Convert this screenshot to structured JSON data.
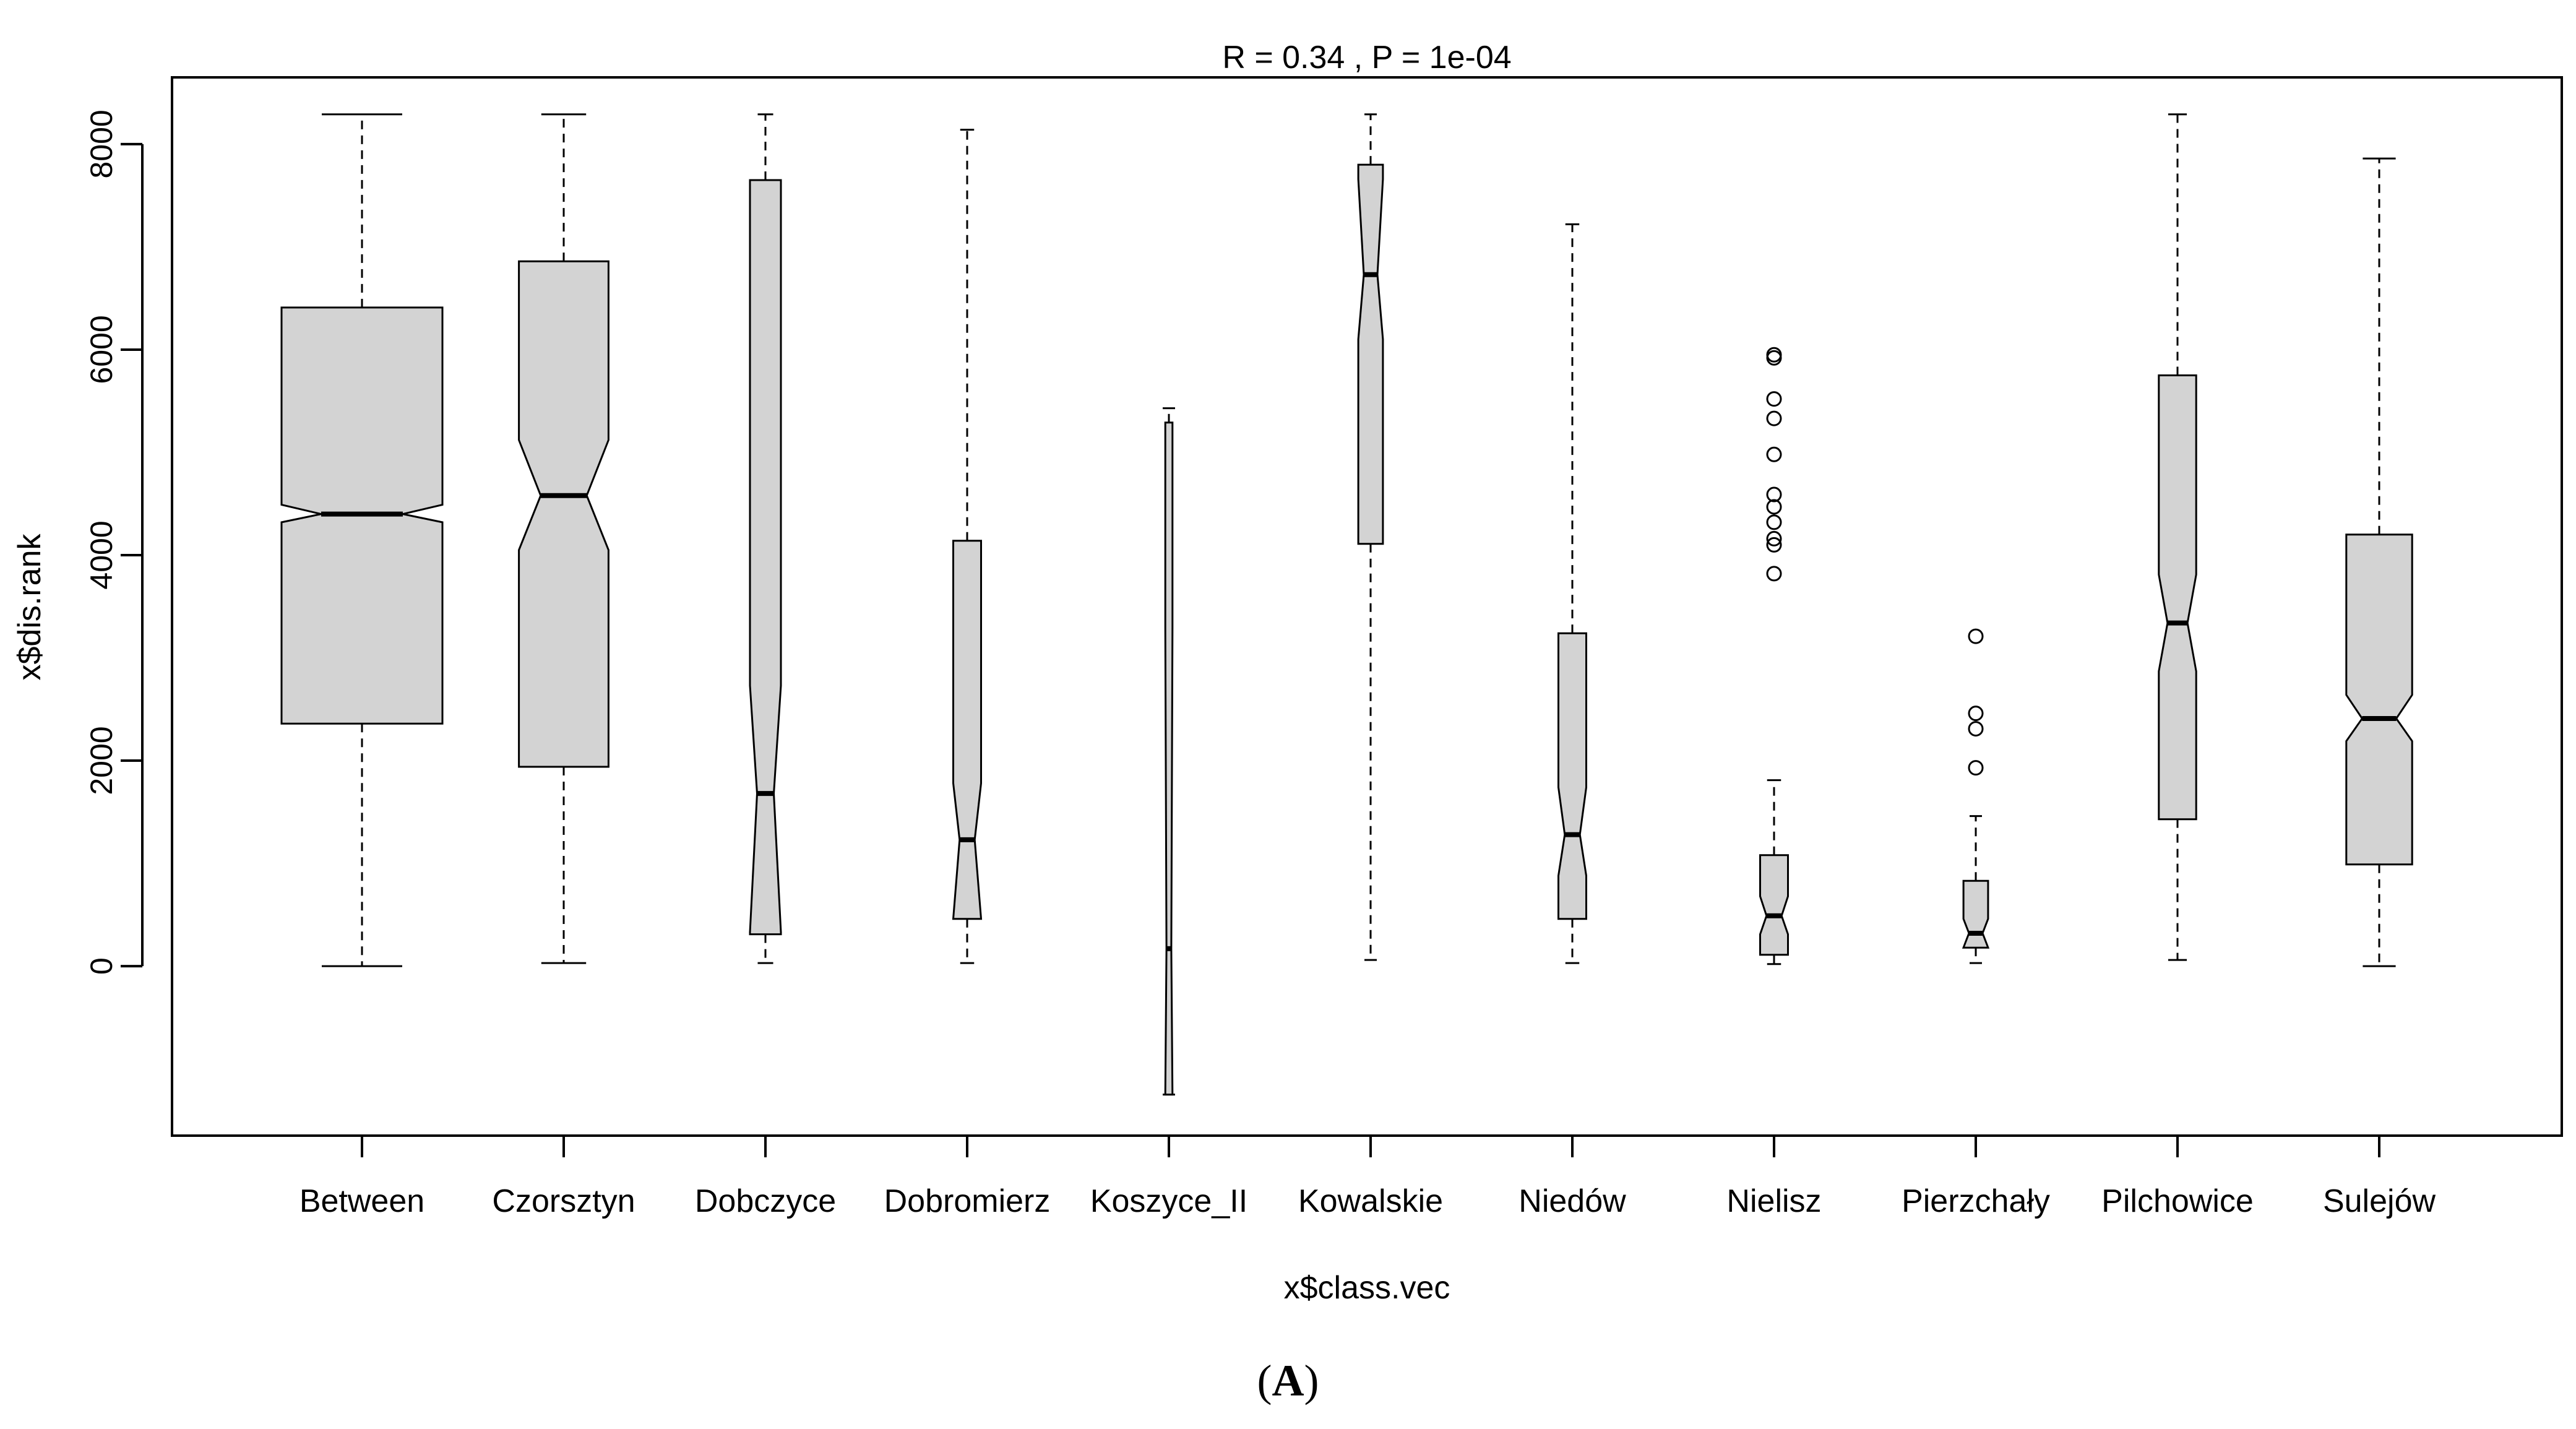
{
  "chart_data": {
    "type": "boxplot",
    "title": "R =  0.34 ,  P =  1e-04",
    "xlabel": "x$class.vec",
    "ylabel": "x$dis.rank",
    "ylim": [
      -1650,
      8650
    ],
    "yticks": [
      0,
      2000,
      4000,
      6000,
      8000
    ],
    "notched": true,
    "grid": false,
    "legend": "none",
    "box_fill": "#d3d3d3",
    "categories": [
      "Between",
      "Czorsztyn",
      "Dobczyce",
      "Dobromierz",
      "Koszyce_II",
      "Kowalskie",
      "Niedów",
      "Nielisz",
      "Pierzchały",
      "Pilchowice",
      "Sulejów"
    ],
    "boxes": [
      {
        "name": "Between",
        "whisker_low": 0,
        "q1": 2360,
        "median": 4400,
        "q3": 6410,
        "whisker_high": 8290,
        "notch_low": 4320,
        "notch_high": 4490,
        "outliers": []
      },
      {
        "name": "Czorsztyn",
        "whisker_low": 30,
        "q1": 1940,
        "median": 4580,
        "q3": 6860,
        "whisker_high": 8290,
        "notch_low": 4050,
        "notch_high": 5120,
        "outliers": []
      },
      {
        "name": "Dobczyce",
        "whisker_low": 30,
        "q1": 310,
        "median": 1680,
        "q3": 7650,
        "whisker_high": 8290,
        "notch_low": 330,
        "notch_high": 2730,
        "outliers": []
      },
      {
        "name": "Dobromierz",
        "whisker_low": 30,
        "q1": 460,
        "median": 1230,
        "q3": 4140,
        "whisker_high": 8140,
        "notch_low": 420,
        "notch_high": 1780,
        "outliers": []
      },
      {
        "name": "Koszyce_II",
        "whisker_low": -1250,
        "q1": -1250,
        "median": 170,
        "q3": 5290,
        "whisker_high": 5430,
        "notch_low": -1250,
        "notch_high": 3300,
        "outliers": []
      },
      {
        "name": "Kowalskie",
        "whisker_low": 60,
        "q1": 4110,
        "median": 6730,
        "q3": 7800,
        "whisker_high": 8290,
        "notch_low": 6100,
        "notch_high": 7660,
        "outliers": []
      },
      {
        "name": "Niedów",
        "whisker_low": 30,
        "q1": 460,
        "median": 1280,
        "q3": 3240,
        "whisker_high": 7220,
        "notch_low": 880,
        "notch_high": 1740,
        "outliers": []
      },
      {
        "name": "Nielisz",
        "whisker_low": 20,
        "q1": 110,
        "median": 490,
        "q3": 1080,
        "whisker_high": 1810,
        "notch_low": 310,
        "notch_high": 680,
        "outliers": [
          3820,
          4100,
          4160,
          4320,
          4470,
          4590,
          4980,
          5330,
          5520,
          5920,
          5950
        ]
      },
      {
        "name": "Pierzchały",
        "whisker_low": 30,
        "q1": 180,
        "median": 320,
        "q3": 830,
        "whisker_high": 1460,
        "notch_low": 180,
        "notch_high": 460,
        "outliers": [
          1930,
          2310,
          2460,
          3210
        ]
      },
      {
        "name": "Pilchowice",
        "whisker_low": 60,
        "q1": 1430,
        "median": 3340,
        "q3": 5750,
        "whisker_high": 8290,
        "notch_low": 2870,
        "notch_high": 3810,
        "outliers": []
      },
      {
        "name": "Sulejów",
        "whisker_low": 0,
        "q1": 990,
        "median": 2410,
        "q3": 4200,
        "whisker_high": 7860,
        "notch_low": 2190,
        "notch_high": 2640,
        "outliers": []
      }
    ]
  },
  "figure": {
    "panel_letter": "A"
  }
}
